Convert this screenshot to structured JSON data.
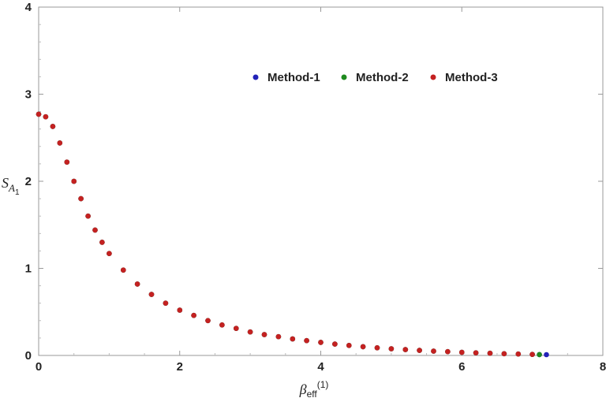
{
  "chart_data": {
    "type": "scatter",
    "title": "",
    "xlabel": {
      "main": "β",
      "sub": "eff",
      "sup": "(1)"
    },
    "ylabel": {
      "main": "S",
      "sub": "A",
      "subsub": "1"
    },
    "xlim": [
      0,
      8
    ],
    "ylim": [
      0,
      4
    ],
    "xticks": [
      "0",
      "2",
      "4",
      "6",
      "8"
    ],
    "yticks": [
      "0",
      "1",
      "2",
      "3",
      "4"
    ],
    "grid": false,
    "legend_position": "top-center",
    "series": [
      {
        "name": "Method-1",
        "color": "#2222b8",
        "points": [
          [
            0.0,
            2.77
          ],
          [
            0.1,
            2.74
          ],
          [
            0.2,
            2.63
          ],
          [
            0.3,
            2.44
          ],
          [
            0.4,
            2.22
          ],
          [
            0.5,
            2.0
          ],
          [
            0.6,
            1.8
          ],
          [
            0.7,
            1.6
          ],
          [
            0.8,
            1.44
          ],
          [
            0.9,
            1.3
          ],
          [
            1.0,
            1.17
          ],
          [
            1.2,
            0.98
          ],
          [
            1.4,
            0.82
          ],
          [
            1.6,
            0.7
          ],
          [
            1.8,
            0.6
          ],
          [
            2.0,
            0.52
          ],
          [
            2.2,
            0.46
          ],
          [
            2.4,
            0.4
          ],
          [
            2.6,
            0.35
          ],
          [
            2.8,
            0.31
          ],
          [
            3.0,
            0.27
          ],
          [
            3.2,
            0.24
          ],
          [
            3.4,
            0.215
          ],
          [
            3.6,
            0.19
          ],
          [
            3.8,
            0.17
          ],
          [
            4.0,
            0.15
          ],
          [
            4.2,
            0.13
          ],
          [
            4.4,
            0.115
          ],
          [
            4.6,
            0.1
          ],
          [
            4.8,
            0.088
          ],
          [
            5.0,
            0.077
          ],
          [
            5.2,
            0.067
          ],
          [
            5.4,
            0.058
          ],
          [
            5.6,
            0.05
          ],
          [
            5.8,
            0.043
          ],
          [
            6.0,
            0.036
          ],
          [
            6.2,
            0.03
          ],
          [
            6.4,
            0.025
          ],
          [
            6.6,
            0.02
          ],
          [
            6.8,
            0.016
          ],
          [
            7.0,
            0.012
          ],
          [
            7.1,
            0.01
          ],
          [
            7.2,
            0.009
          ]
        ]
      },
      {
        "name": "Method-2",
        "color": "#1f8a1f",
        "points": [
          [
            0.0,
            2.77
          ],
          [
            0.1,
            2.74
          ],
          [
            0.2,
            2.63
          ],
          [
            0.3,
            2.44
          ],
          [
            0.4,
            2.22
          ],
          [
            0.5,
            2.0
          ],
          [
            0.6,
            1.8
          ],
          [
            0.7,
            1.6
          ],
          [
            0.8,
            1.44
          ],
          [
            0.9,
            1.3
          ],
          [
            1.0,
            1.17
          ],
          [
            1.2,
            0.98
          ],
          [
            1.4,
            0.82
          ],
          [
            1.6,
            0.7
          ],
          [
            1.8,
            0.6
          ],
          [
            2.0,
            0.52
          ],
          [
            2.2,
            0.46
          ],
          [
            2.4,
            0.4
          ],
          [
            2.6,
            0.35
          ],
          [
            2.8,
            0.31
          ],
          [
            3.0,
            0.27
          ],
          [
            3.2,
            0.24
          ],
          [
            3.4,
            0.215
          ],
          [
            3.6,
            0.19
          ],
          [
            3.8,
            0.17
          ],
          [
            4.0,
            0.15
          ],
          [
            4.2,
            0.13
          ],
          [
            4.4,
            0.115
          ],
          [
            4.6,
            0.1
          ],
          [
            4.8,
            0.088
          ],
          [
            5.0,
            0.077
          ],
          [
            5.2,
            0.067
          ],
          [
            5.4,
            0.058
          ],
          [
            5.6,
            0.05
          ],
          [
            5.8,
            0.043
          ],
          [
            6.0,
            0.036
          ],
          [
            6.2,
            0.03
          ],
          [
            6.4,
            0.025
          ],
          [
            6.6,
            0.02
          ],
          [
            6.8,
            0.016
          ],
          [
            7.0,
            0.012
          ],
          [
            7.1,
            0.01
          ]
        ]
      },
      {
        "name": "Method-3",
        "color": "#c42121",
        "points": [
          [
            0.0,
            2.77
          ],
          [
            0.1,
            2.74
          ],
          [
            0.2,
            2.63
          ],
          [
            0.3,
            2.44
          ],
          [
            0.4,
            2.22
          ],
          [
            0.5,
            2.0
          ],
          [
            0.6,
            1.8
          ],
          [
            0.7,
            1.6
          ],
          [
            0.8,
            1.44
          ],
          [
            0.9,
            1.3
          ],
          [
            1.0,
            1.17
          ],
          [
            1.2,
            0.98
          ],
          [
            1.4,
            0.82
          ],
          [
            1.6,
            0.7
          ],
          [
            1.8,
            0.6
          ],
          [
            2.0,
            0.52
          ],
          [
            2.2,
            0.46
          ],
          [
            2.4,
            0.4
          ],
          [
            2.6,
            0.35
          ],
          [
            2.8,
            0.31
          ],
          [
            3.0,
            0.27
          ],
          [
            3.2,
            0.24
          ],
          [
            3.4,
            0.215
          ],
          [
            3.6,
            0.19
          ],
          [
            3.8,
            0.17
          ],
          [
            4.0,
            0.15
          ],
          [
            4.2,
            0.13
          ],
          [
            4.4,
            0.115
          ],
          [
            4.6,
            0.1
          ],
          [
            4.8,
            0.088
          ],
          [
            5.0,
            0.077
          ],
          [
            5.2,
            0.067
          ],
          [
            5.4,
            0.058
          ],
          [
            5.6,
            0.05
          ],
          [
            5.8,
            0.043
          ],
          [
            6.0,
            0.036
          ],
          [
            6.2,
            0.03
          ],
          [
            6.4,
            0.025
          ],
          [
            6.6,
            0.02
          ],
          [
            6.8,
            0.016
          ],
          [
            7.0,
            0.012
          ]
        ]
      }
    ]
  }
}
